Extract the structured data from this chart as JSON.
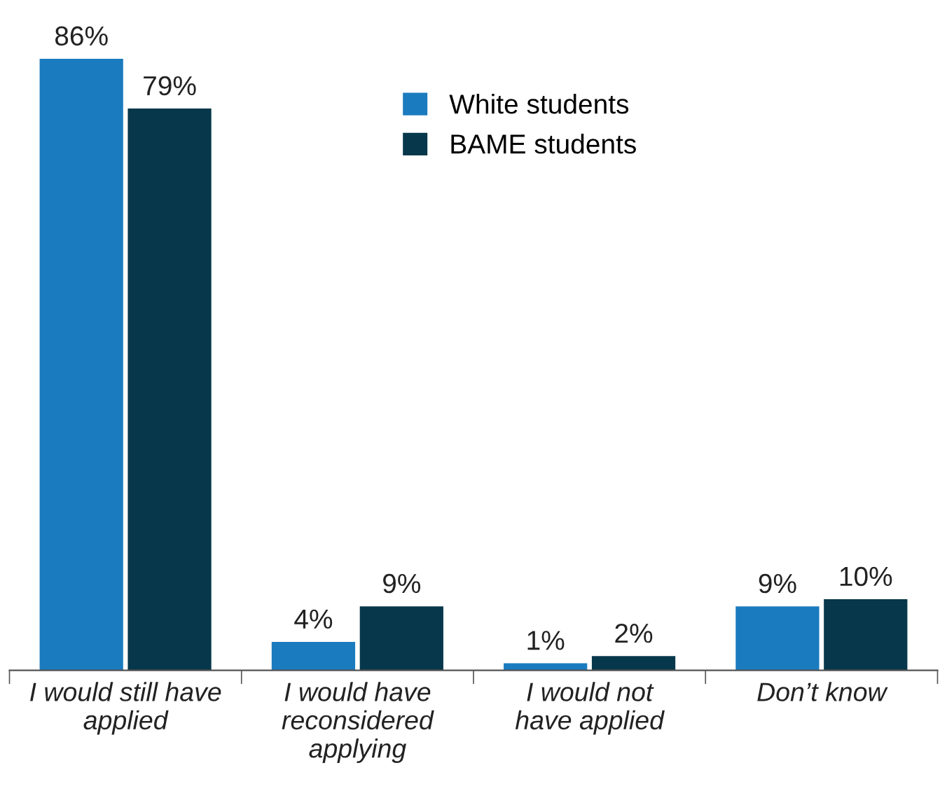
{
  "chart_data": {
    "type": "bar",
    "categories": [
      "I would still have\napplied",
      "I would have\nreconsidered\napplying",
      "I would not\nhave applied",
      "Don’t know"
    ],
    "series": [
      {
        "name": "White students",
        "color": "#1b7bbf",
        "values": [
          86,
          4,
          1,
          9
        ],
        "value_labels": [
          "86%",
          "4%",
          "1%",
          "9%"
        ]
      },
      {
        "name": "BAME students",
        "color": "#07374b",
        "values": [
          79,
          9,
          2,
          10
        ],
        "value_labels": [
          "79%",
          "9%",
          "2%",
          "10%"
        ]
      }
    ],
    "legend": "top",
    "grid": false
  }
}
